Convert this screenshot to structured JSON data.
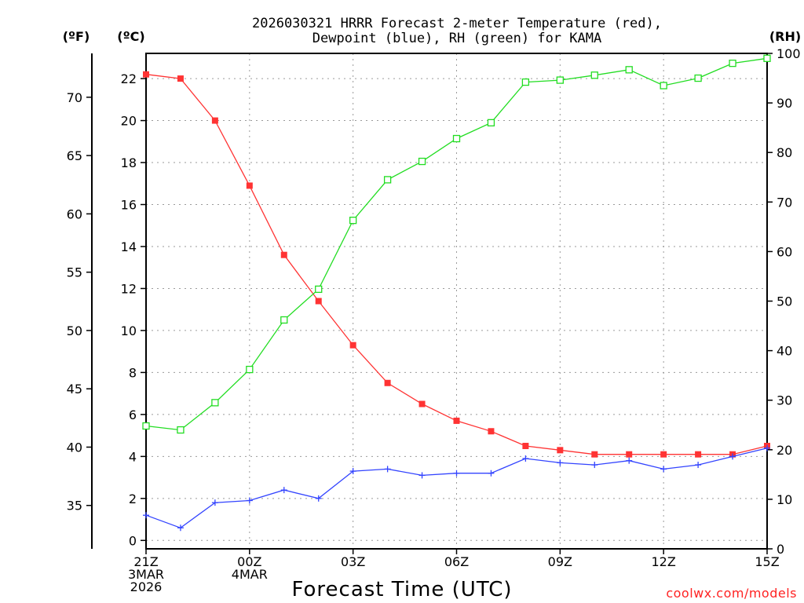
{
  "chart_data": {
    "type": "line",
    "title_lines": [
      "2026030321 HRRR Forecast 2-meter Temperature (red),",
      "Dewpoint (blue), RH (green) for KAMA"
    ],
    "xlabel": "Forecast Time (UTC)",
    "credit": "coolwx.com/models",
    "x_ticks": [
      {
        "hour": 0,
        "lines": [
          "21Z",
          "3MAR",
          "2026"
        ]
      },
      {
        "hour": 3,
        "lines": [
          "00Z",
          "4MAR"
        ]
      },
      {
        "hour": 6,
        "lines": [
          "03Z"
        ]
      },
      {
        "hour": 9,
        "lines": [
          "06Z"
        ]
      },
      {
        "hour": 12,
        "lines": [
          "09Z"
        ]
      },
      {
        "hour": 15,
        "lines": [
          "12Z"
        ]
      },
      {
        "hour": 18,
        "lines": [
          "15Z"
        ]
      }
    ],
    "xlim": [
      0,
      18
    ],
    "axes": {
      "f_unit": "(ºF)",
      "c_unit": "(ºC)",
      "rh_unit": "(RH)",
      "c_ylim": [
        -0.4,
        23.2
      ],
      "c_ticks": [
        "0",
        "2",
        "4",
        "6",
        "8",
        "10",
        "12",
        "14",
        "16",
        "18",
        "20",
        "22"
      ],
      "f_ticks": [
        "35",
        "40",
        "45",
        "50",
        "55",
        "60",
        "65",
        "70"
      ],
      "rh_ylim": [
        0,
        100
      ],
      "rh_ticks": [
        "0",
        "10",
        "20",
        "30",
        "40",
        "50",
        "60",
        "70",
        "80",
        "90",
        "100"
      ]
    },
    "series": [
      {
        "name": "2-meter Temperature",
        "axis": "C",
        "color": "#ff3333",
        "marker": "filled-square",
        "values": [
          22.2,
          22.0,
          20.0,
          16.9,
          13.6,
          11.4,
          9.3,
          7.5,
          6.5,
          5.7,
          5.2,
          4.5,
          4.3,
          4.1,
          4.1,
          4.1,
          4.1,
          4.1,
          4.5
        ]
      },
      {
        "name": "Dewpoint",
        "axis": "C",
        "color": "#3344ff",
        "marker": "plus",
        "values": [
          1.2,
          0.6,
          1.8,
          1.9,
          2.4,
          2.0,
          3.3,
          3.4,
          3.1,
          3.2,
          3.2,
          3.9,
          3.7,
          3.6,
          3.8,
          3.4,
          3.6,
          4.0,
          4.4
        ]
      },
      {
        "name": "RH",
        "axis": "RH",
        "color": "#22dd22",
        "marker": "open-square",
        "values": [
          24.8,
          24.0,
          29.5,
          36.2,
          46.2,
          52.4,
          66.3,
          74.5,
          78.2,
          82.8,
          86.0,
          94.2,
          94.6,
          95.6,
          96.7,
          93.5,
          95.0,
          98.0,
          99.0
        ]
      }
    ]
  }
}
